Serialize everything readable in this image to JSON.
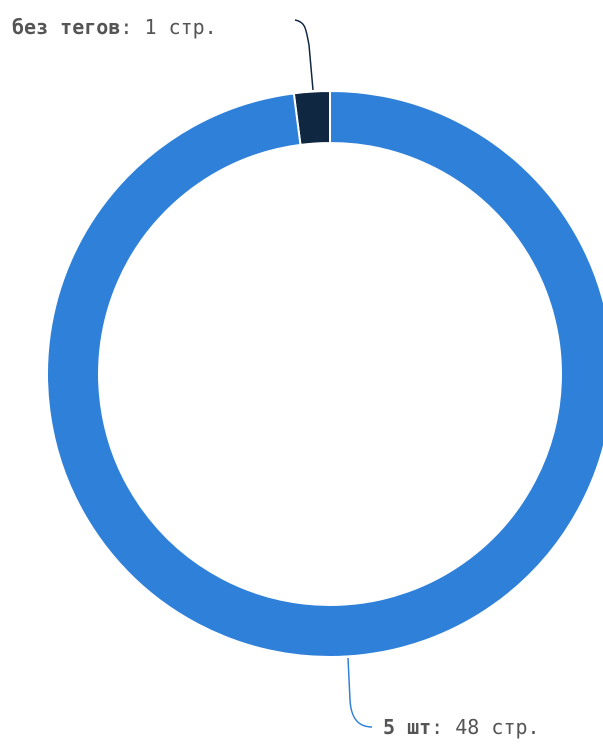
{
  "chart_data": {
    "type": "pie",
    "variant": "donut",
    "slices": [
      {
        "name": "без тегов",
        "value": 1,
        "unit": "стр.",
        "color": "#0f2740"
      },
      {
        "name": "5 шт",
        "value": 48,
        "unit": "стр.",
        "color": "#2f80d9"
      }
    ]
  }
}
